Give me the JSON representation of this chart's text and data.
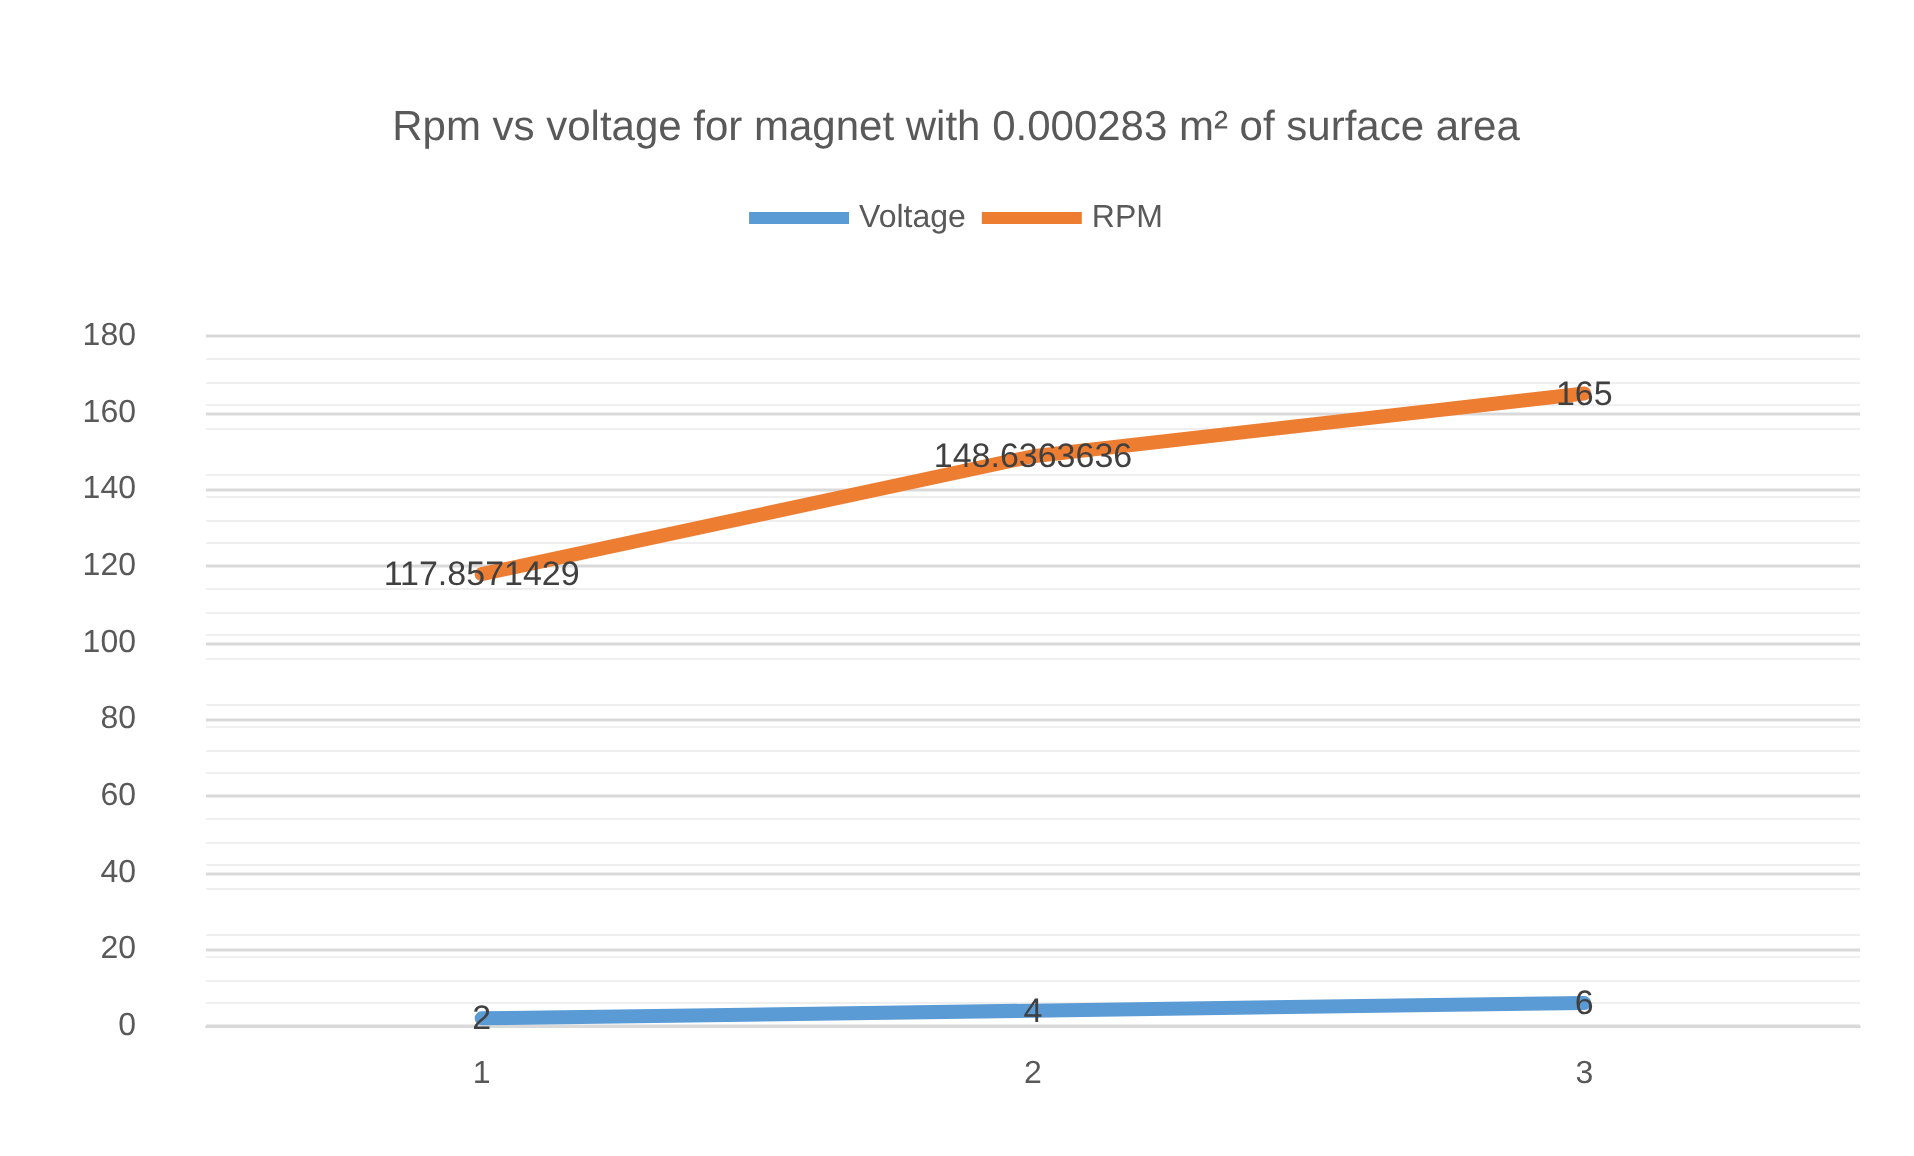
{
  "chart_data": {
    "type": "line",
    "title": "Rpm vs voltage for magnet with 0.000283 m² of surface area",
    "categories": [
      "1",
      "2",
      "3"
    ],
    "series": [
      {
        "name": "Voltage",
        "color": "#5b9bd5",
        "values": [
          2,
          4,
          6
        ]
      },
      {
        "name": "RPM",
        "color": "#ed7d31",
        "values": [
          117.8571429,
          148.6363636,
          165
        ]
      }
    ],
    "ylim": [
      0,
      180
    ],
    "yticks": [
      0,
      20,
      40,
      60,
      80,
      100,
      120,
      140,
      160,
      180
    ],
    "grid": true,
    "legend": "top",
    "data_labels": true,
    "marker": "none",
    "line_style": "solid"
  }
}
